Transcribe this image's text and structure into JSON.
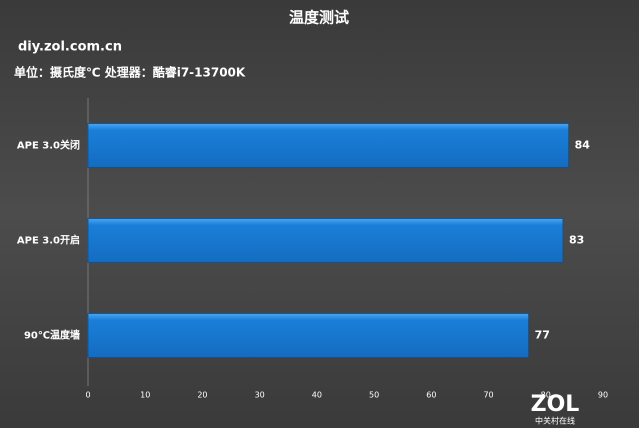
{
  "chart_data": {
    "type": "barh",
    "title": "温度测试",
    "subtitle": "diy.zol.com.cn",
    "note": "单位：摄氏度℃  处理器：酷睿i7-13700K",
    "categories": [
      "APE 3.0关闭",
      "APE 3.0开启",
      "90℃温度墙"
    ],
    "values": [
      84,
      83,
      77
    ],
    "color": "#1a7fd8",
    "xlim": [
      0,
      90
    ],
    "xticks": [
      0,
      10,
      20,
      30,
      40,
      50,
      60,
      70,
      80,
      90
    ],
    "grid": false,
    "watermark": {
      "logo": "ZOL",
      "text": "中关村在线"
    }
  }
}
